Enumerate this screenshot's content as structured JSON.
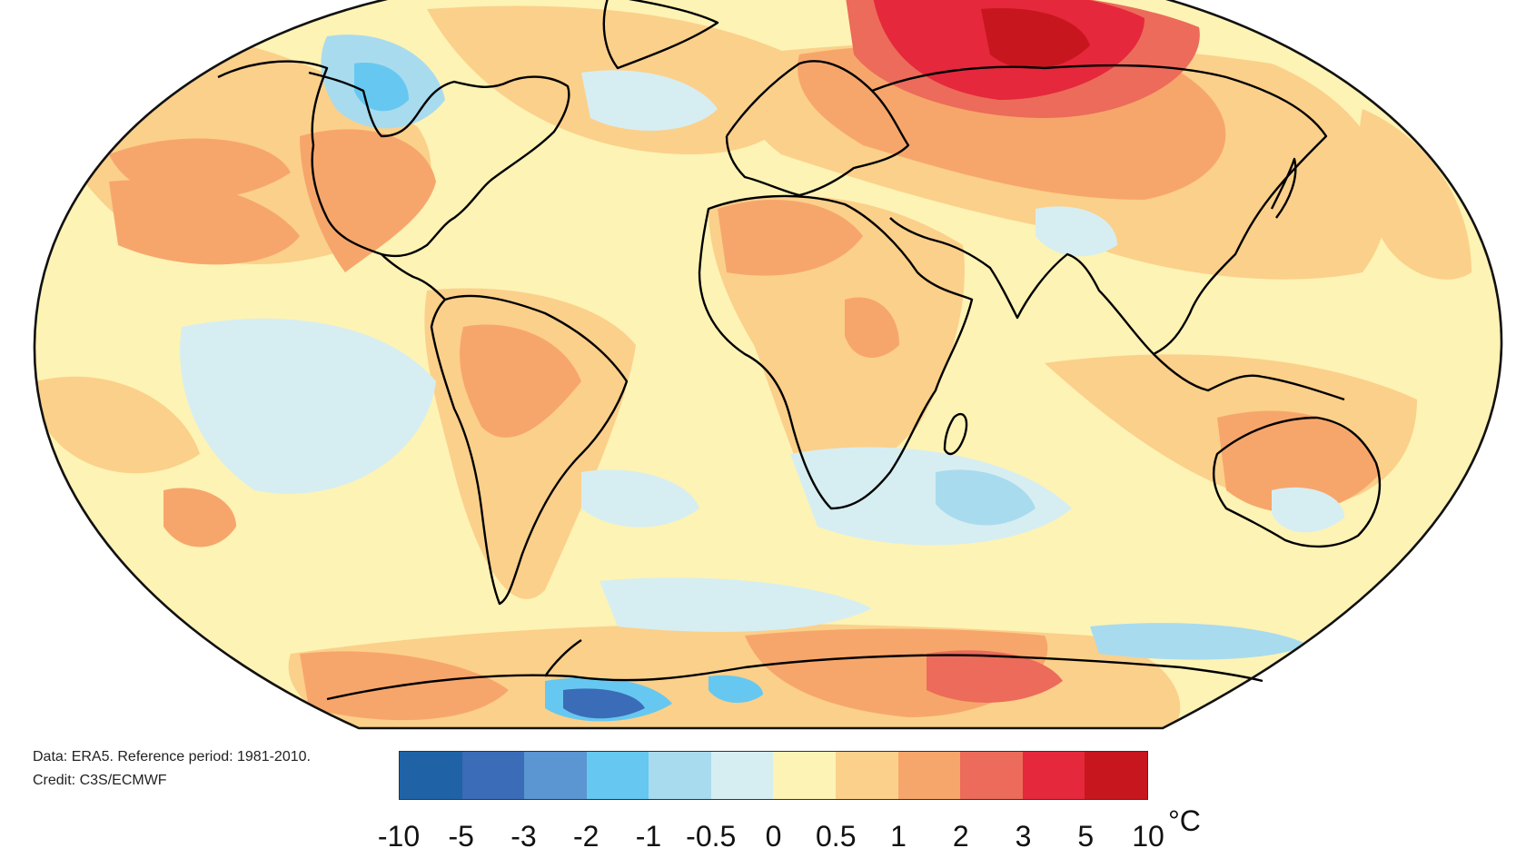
{
  "credit": {
    "line1": "Data: ERA5.  Reference period: 1981-2010.",
    "line2": "Credit: C3S/ECMWF"
  },
  "legend": {
    "unit": "°C",
    "ticks": [
      "-10",
      "-5",
      "-3",
      "-2",
      "-1",
      "-0.5",
      "0",
      "0.5",
      "1",
      "2",
      "3",
      "5",
      "10"
    ],
    "colors": [
      "#1f63a6",
      "#3b6cb8",
      "#5b95d2",
      "#66c8f0",
      "#a9dbee",
      "#d6eef2",
      "#fdf3b5",
      "#fbd08a",
      "#f7a66b",
      "#ec6b5a",
      "#e5283c",
      "#c8161e"
    ]
  },
  "map": {
    "projection": "robinson",
    "variable": "surface air temperature anomaly",
    "regions": {
      "north_russia": "5",
      "siberia": "3",
      "north_canada": "-1",
      "south_pacific": "-0.5",
      "east_antarctica": "2",
      "weddell_sea": "-5"
    },
    "colors": {
      "ocean_base": "#fdf3b5",
      "coastline": "#000000"
    }
  }
}
